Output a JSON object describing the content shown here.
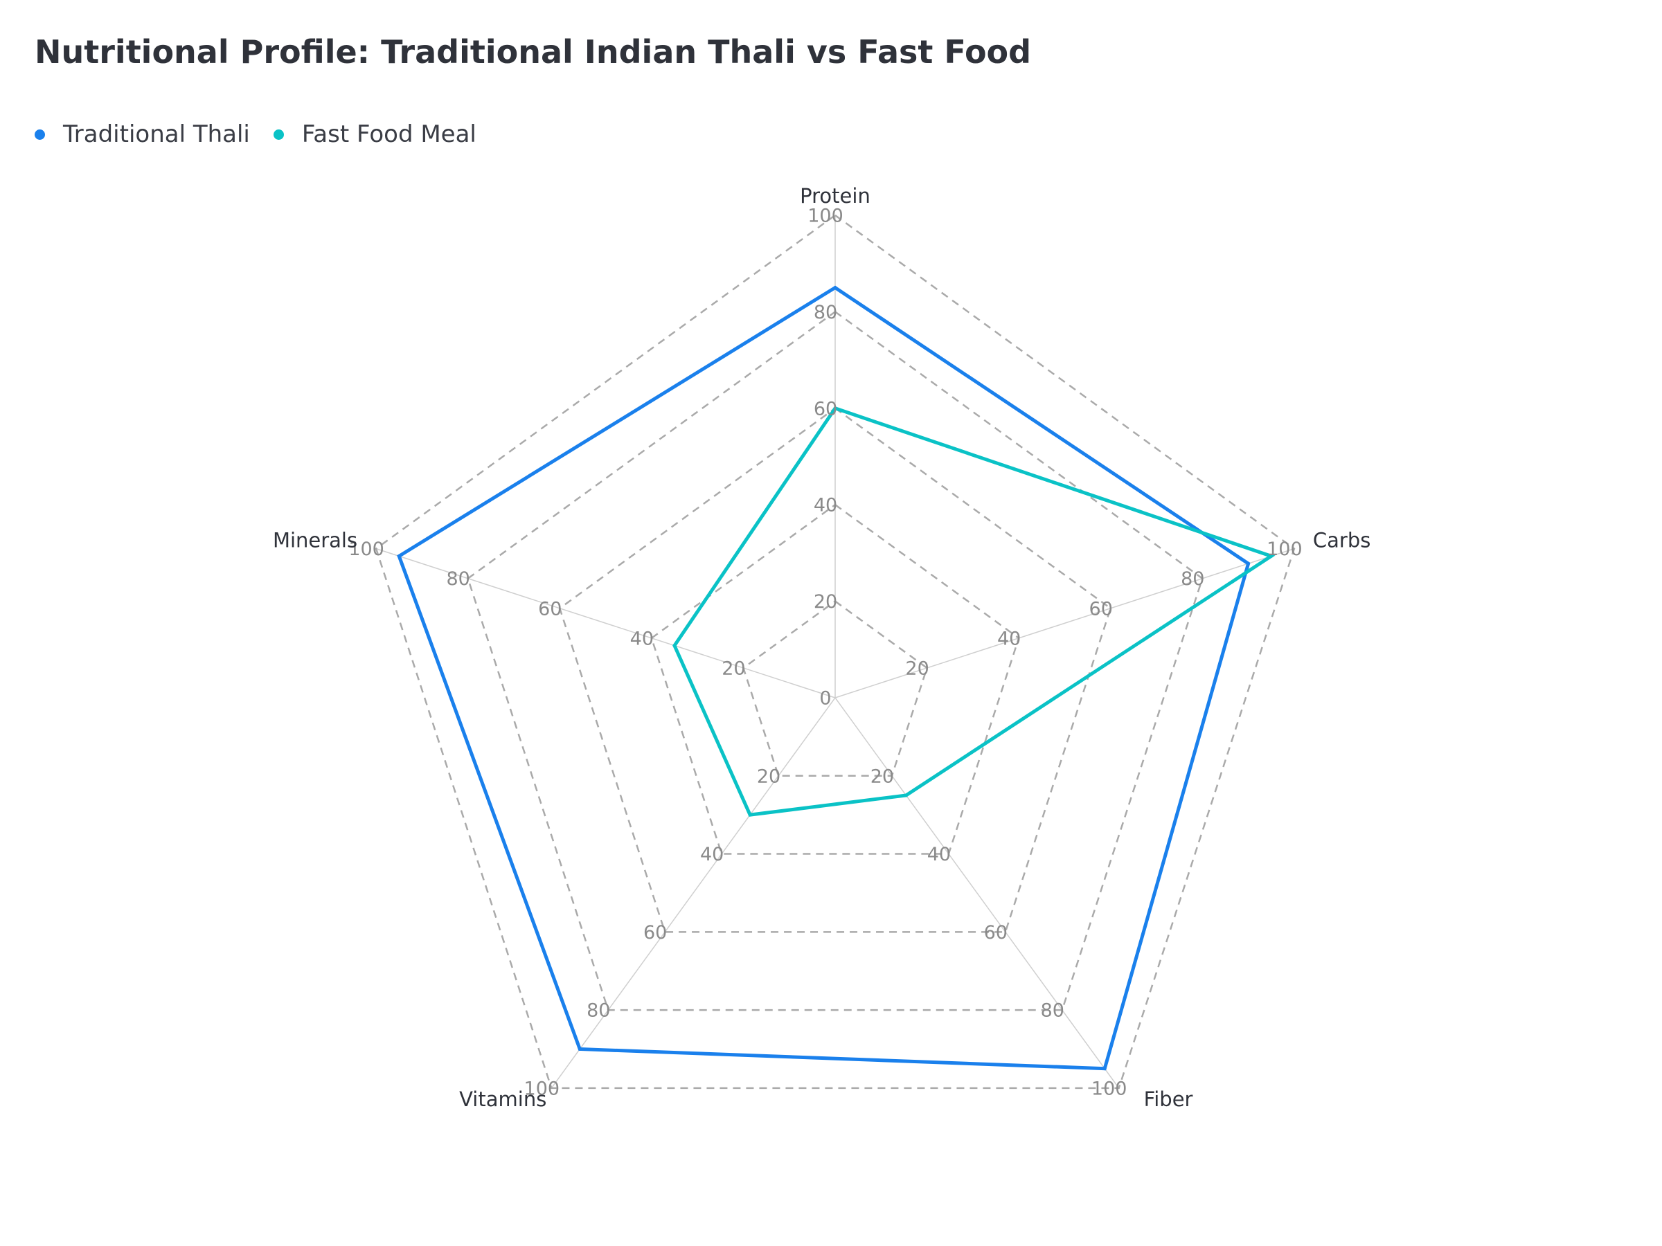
{
  "colors": {
    "thali": "#1a80ec",
    "fast_food": "#0ac2c6",
    "grid": "#aaaaaa",
    "spoke": "#cfcfcf",
    "title": "#2f323a"
  },
  "chart_data": {
    "type": "radar",
    "title": "Nutritional Profile: Traditional Indian Thali vs Fast Food",
    "categories": [
      "Protein",
      "Carbs",
      "Fiber",
      "Vitamins",
      "Minerals"
    ],
    "rlim": [
      0,
      100
    ],
    "ticks": [
      0,
      20,
      40,
      60,
      80,
      100
    ],
    "grid": true,
    "grid_style": "dashed",
    "legend_position": "top-left",
    "series": [
      {
        "name": "Traditional Thali",
        "color": "#1a80ec",
        "values": [
          85,
          90,
          95,
          90,
          95
        ]
      },
      {
        "name": "Fast Food Meal",
        "color": "#0ac2c6",
        "values": [
          60,
          95,
          25,
          30,
          35
        ]
      }
    ]
  }
}
